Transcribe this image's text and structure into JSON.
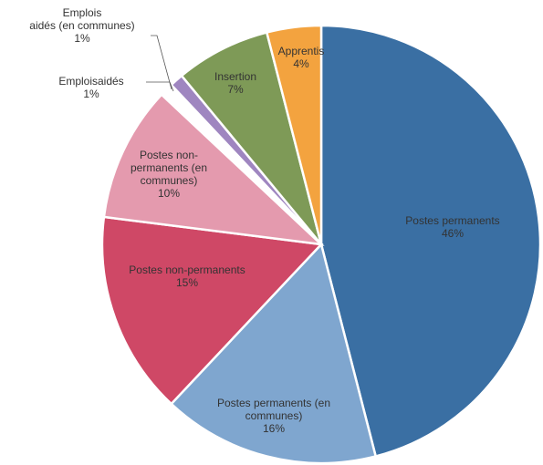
{
  "chart_data": {
    "type": "pie",
    "title": "",
    "slices": [
      {
        "label": "Postes permanents",
        "value": 46,
        "value_label": "46%",
        "color": "#3a6fa3"
      },
      {
        "label": "Postes permanents (en communes)",
        "value": 16,
        "value_label": "16%",
        "color": "#7fa6cf"
      },
      {
        "label": "Postes non-permanents",
        "value": 15,
        "value_label": "15%",
        "color": "#cf4866"
      },
      {
        "label": "Postes non-permanents (en communes)",
        "value": 10,
        "value_label": "10%",
        "color": "#e49aae"
      },
      {
        "label": "Emplois aidés",
        "value": 1,
        "value_label": "1%",
        "color": "#ffffff"
      },
      {
        "label": "Emplois aidés (en communes)",
        "value": 1,
        "value_label": "1%",
        "color": "#9f86c0"
      },
      {
        "label": "Insertion",
        "value": 7,
        "value_label": "7%",
        "color": "#7e9a57"
      },
      {
        "label": "Apprentis",
        "value": 4,
        "value_label": "4%",
        "color": "#f3a33f"
      }
    ]
  }
}
